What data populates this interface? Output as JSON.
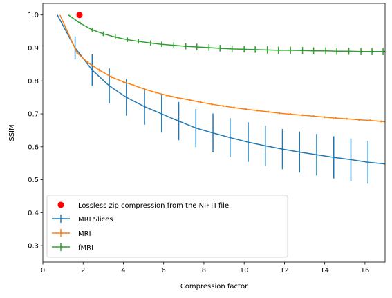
{
  "chart_data": {
    "type": "line",
    "xlabel": "Compression factor",
    "ylabel": "SSIM",
    "xlim": [
      0,
      17
    ],
    "ylim": [
      0.25,
      1.035
    ],
    "xticks": [
      0,
      2,
      4,
      6,
      8,
      10,
      12,
      14,
      16
    ],
    "yticks": [
      0.3,
      0.4,
      0.5,
      0.6,
      0.7,
      0.8,
      0.9,
      1.0
    ],
    "grid": false,
    "legend_position": "lower-left",
    "point_series": {
      "name": "Lossless zip compression from the NIFTI file",
      "color": "#ff0000",
      "points": [
        {
          "x": 1.82,
          "y": 1.0
        }
      ]
    },
    "series": [
      {
        "name": "MRI Slices",
        "color": "#1f77b4",
        "x": [
          0.72,
          1.6,
          2.45,
          3.3,
          4.15,
          5.05,
          5.9,
          6.75,
          7.6,
          8.45,
          9.3,
          10.2,
          11.05,
          11.9,
          12.75,
          13.6,
          14.45,
          15.3,
          16.15,
          17.0
        ],
        "y": [
          1.0,
          0.9,
          0.833,
          0.785,
          0.75,
          0.722,
          0.7,
          0.678,
          0.657,
          0.642,
          0.628,
          0.614,
          0.603,
          0.593,
          0.584,
          0.576,
          0.568,
          0.561,
          0.553,
          0.548
        ],
        "yerr": [
          0,
          0.035,
          0.048,
          0.053,
          0.055,
          0.055,
          0.057,
          0.058,
          0.058,
          0.059,
          0.059,
          0.06,
          0.061,
          0.061,
          0.062,
          0.063,
          0.064,
          0.065,
          0.065,
          0
        ]
      },
      {
        "name": "MRI",
        "color": "#ff7f0e",
        "x": [
          0.85,
          1.7,
          2.25,
          2.8,
          3.4,
          4.0,
          4.5,
          5.05,
          5.6,
          6.15,
          6.7,
          7.3,
          7.85,
          8.4,
          8.95,
          9.5,
          10.1,
          10.65,
          11.2,
          11.75,
          12.3,
          12.9,
          13.45,
          14.0,
          14.55,
          15.1,
          15.7,
          16.25,
          16.8,
          17.0
        ],
        "y": [
          1.0,
          0.885,
          0.855,
          0.833,
          0.812,
          0.797,
          0.787,
          0.775,
          0.765,
          0.756,
          0.749,
          0.742,
          0.735,
          0.729,
          0.724,
          0.719,
          0.714,
          0.71,
          0.706,
          0.702,
          0.699,
          0.696,
          0.693,
          0.69,
          0.687,
          0.685,
          0.682,
          0.68,
          0.677,
          0.676
        ],
        "yerr": [
          0,
          0.004,
          0.004,
          0.004,
          0.004,
          0.003,
          0.003,
          0.003,
          0.003,
          0.003,
          0.003,
          0.003,
          0.003,
          0.003,
          0.003,
          0.003,
          0.003,
          0.003,
          0.003,
          0.003,
          0.003,
          0.003,
          0.003,
          0.003,
          0.003,
          0.003,
          0.003,
          0.003,
          0.003,
          0
        ]
      },
      {
        "name": "fMRI",
        "color": "#2ca02c",
        "x": [
          1.27,
          1.85,
          2.45,
          3.0,
          3.6,
          4.2,
          4.75,
          5.35,
          5.9,
          6.5,
          7.1,
          7.65,
          8.25,
          8.8,
          9.4,
          10.0,
          10.55,
          11.15,
          11.7,
          12.3,
          12.9,
          13.45,
          14.05,
          14.6,
          15.2,
          15.8,
          16.35,
          16.9,
          17.0
        ],
        "y": [
          1.0,
          0.975,
          0.955,
          0.943,
          0.933,
          0.925,
          0.92,
          0.915,
          0.911,
          0.908,
          0.905,
          0.903,
          0.901,
          0.899,
          0.897,
          0.896,
          0.895,
          0.894,
          0.893,
          0.893,
          0.892,
          0.891,
          0.891,
          0.89,
          0.89,
          0.889,
          0.889,
          0.889,
          0.889
        ],
        "yerr": [
          0,
          0.004,
          0.007,
          0.007,
          0.007,
          0.007,
          0.007,
          0.008,
          0.008,
          0.009,
          0.009,
          0.01,
          0.01,
          0.01,
          0.01,
          0.01,
          0.01,
          0.011,
          0.011,
          0.011,
          0.011,
          0.011,
          0.011,
          0.011,
          0.011,
          0.011,
          0.011,
          0.011,
          0
        ]
      }
    ]
  }
}
